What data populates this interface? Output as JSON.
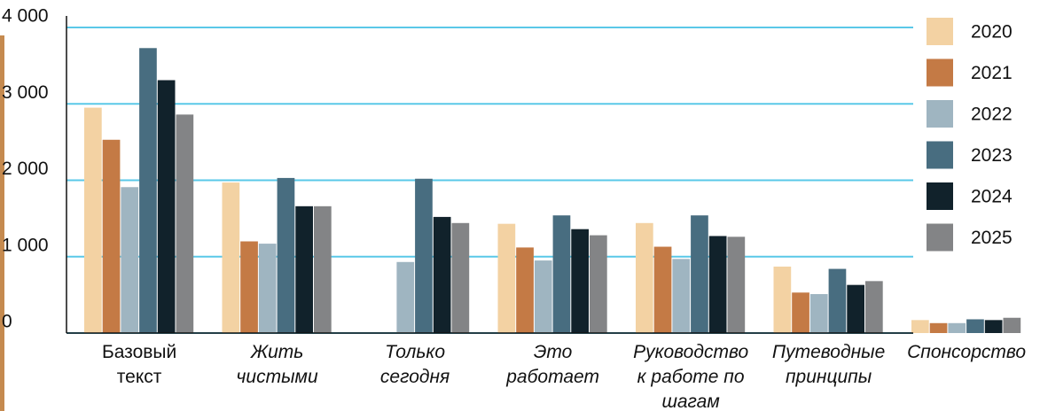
{
  "chart_data": {
    "type": "bar",
    "categories": [
      "Базовый\nтекст",
      "Жить\nчистыми",
      "Только\nсегодня",
      "Это\nработает",
      "Руководство\nк работе по\nшагам",
      "Путеводные\nпринципы",
      "Спонсорство"
    ],
    "series": [
      {
        "name": "2020",
        "color": "#f3d2a3",
        "values": [
          2950,
          1970,
          null,
          1430,
          1440,
          870,
          170
        ]
      },
      {
        "name": "2021",
        "color": "#c47a45",
        "values": [
          2530,
          1200,
          null,
          1120,
          1130,
          530,
          130
        ]
      },
      {
        "name": "2022",
        "color": "#9fb5c1",
        "values": [
          1910,
          1170,
          930,
          950,
          970,
          510,
          130
        ]
      },
      {
        "name": "2023",
        "color": "#486d80",
        "values": [
          3730,
          2030,
          2020,
          1540,
          1540,
          840,
          180
        ]
      },
      {
        "name": "2024",
        "color": "#11222b",
        "values": [
          3310,
          1660,
          1520,
          1360,
          1270,
          630,
          170
        ]
      },
      {
        "name": "2025",
        "color": "#838486",
        "values": [
          2860,
          1660,
          1440,
          1280,
          1260,
          680,
          200
        ]
      }
    ],
    "ylim": [
      0,
      4000
    ],
    "yticks": [
      0,
      {
        "value": 1000,
        "label": "1 000"
      },
      {
        "value": 2000,
        "label": "2 000"
      },
      {
        "value": 3000,
        "label": "3 000"
      },
      {
        "value": 4000,
        "label": "4 000"
      }
    ],
    "grid": true,
    "legend": "right"
  }
}
